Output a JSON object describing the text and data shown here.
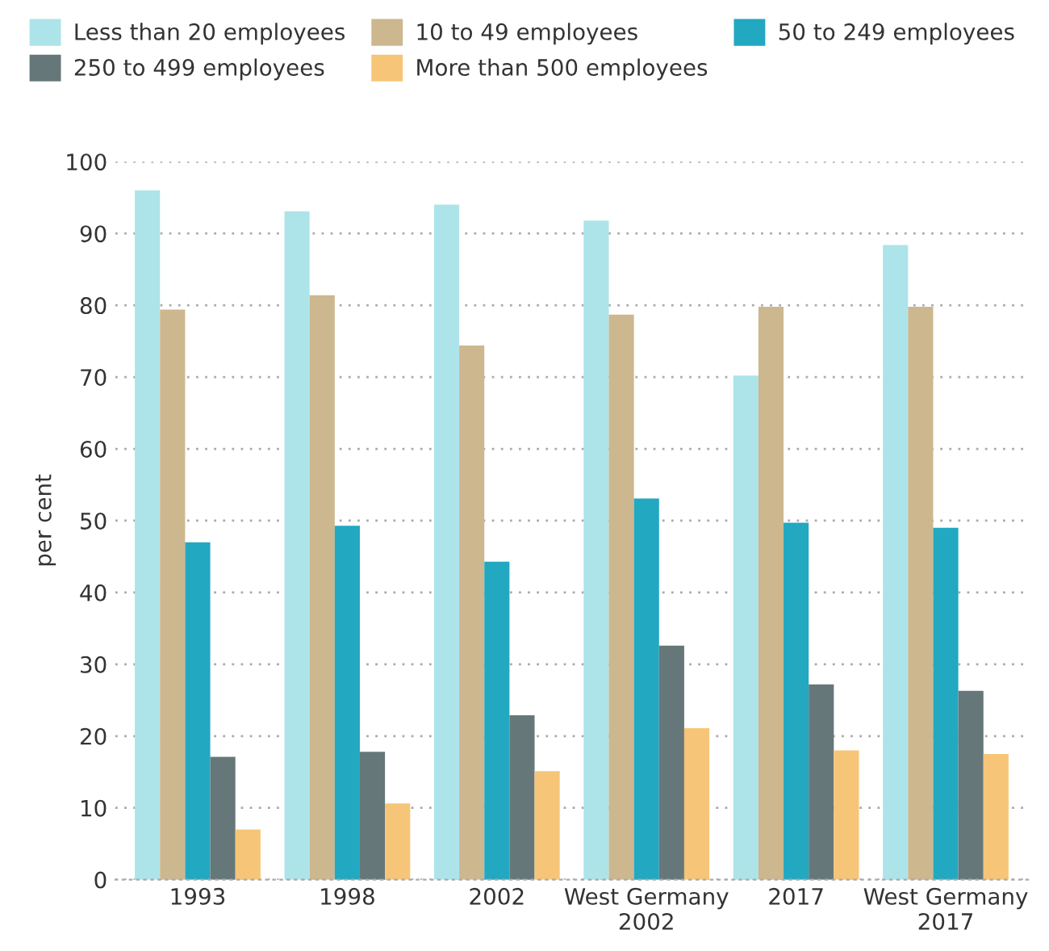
{
  "chart_data": {
    "type": "bar",
    "ylabel": "per cent",
    "categories": [
      "1993",
      "1998",
      "2002",
      "West Germany\n2002",
      "2017",
      "West Germany\n2017"
    ],
    "series": [
      {
        "name": "Less than 20 employees",
        "color": "#ade4e9",
        "values": [
          96.0,
          93.1,
          94.0,
          91.8,
          70.2,
          88.4
        ]
      },
      {
        "name": "10 to 49 employees",
        "color": "#ccb78f",
        "values": [
          79.4,
          81.4,
          74.4,
          78.7,
          79.8,
          79.8
        ]
      },
      {
        "name": "50 to 249 employees",
        "color": "#22a8c1",
        "values": [
          47.0,
          49.3,
          44.3,
          53.1,
          49.7,
          49.0
        ]
      },
      {
        "name": "250 to 499 employees",
        "color": "#66777a",
        "values": [
          17.1,
          17.8,
          22.9,
          32.6,
          27.2,
          26.3
        ]
      },
      {
        "name": "More than 500 employees",
        "color": "#f6c577",
        "values": [
          7.0,
          10.6,
          15.1,
          21.1,
          18.0,
          17.5
        ]
      }
    ],
    "ylim": [
      0,
      100
    ],
    "yticks": [
      0,
      10,
      20,
      30,
      40,
      50,
      60,
      70,
      80,
      90,
      100
    ],
    "grid": "y",
    "legend": "top left"
  }
}
